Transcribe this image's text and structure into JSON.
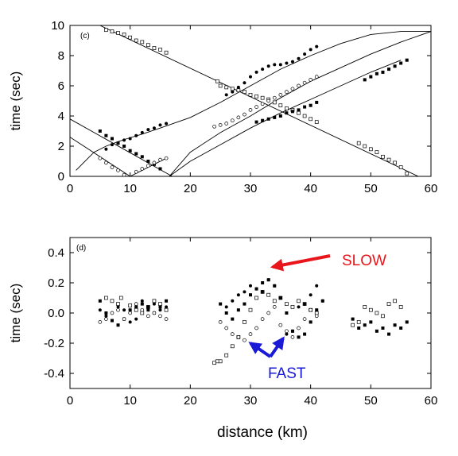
{
  "chart_data": [
    {
      "panel_label": "(c)",
      "type": "scatter",
      "xlim": [
        0,
        60
      ],
      "ylim": [
        0,
        10
      ],
      "xticks": [
        "0",
        "10",
        "20",
        "30",
        "40",
        "50",
        "60"
      ],
      "yticks": [
        "0",
        "2",
        "4",
        "6",
        "8",
        "10"
      ],
      "ylabel": "time (sec)",
      "xlabel": "",
      "grid": false,
      "lines": [
        {
          "x": [
            5,
            60
          ],
          "y": [
            10.0,
            -0.4
          ]
        },
        {
          "x": [
            0,
            17
          ],
          "y": [
            3.8,
            0
          ]
        },
        {
          "x": [
            0,
            10
          ],
          "y": [
            2.6,
            0
          ]
        },
        {
          "x": [
            10,
            16
          ],
          "y": [
            0,
            1.2
          ]
        },
        {
          "x": [
            1,
            2,
            4,
            6,
            8,
            9.5,
            12,
            15,
            20,
            25,
            30,
            35,
            40,
            45,
            50,
            55,
            60
          ],
          "y": [
            0.4,
            0.8,
            1.6,
            2.0,
            2.3,
            2.5,
            2.8,
            3.2,
            3.9,
            4.9,
            6.0,
            7.1,
            8.0,
            8.8,
            9.4,
            9.6,
            9.6
          ]
        },
        {
          "x": [
            16.5,
            20,
            25,
            30,
            35,
            40,
            45,
            50,
            55,
            60
          ],
          "y": [
            0,
            1.6,
            2.9,
            4.0,
            5.2,
            6.3,
            7.2,
            8.1,
            8.9,
            9.6
          ]
        },
        {
          "x": [
            16.5,
            20,
            25,
            30,
            35,
            40,
            45,
            50,
            55
          ],
          "y": [
            0,
            1.0,
            2.1,
            3.2,
            4.2,
            5.1,
            6.0,
            6.9,
            7.7
          ]
        }
      ],
      "series": [
        {
          "marker": "open-square",
          "x": [
            6,
            7,
            8,
            9,
            10,
            11,
            12,
            13,
            14,
            15,
            16,
            24.5,
            25,
            26,
            27,
            28,
            29,
            30,
            31,
            32,
            33,
            34,
            35,
            36,
            37,
            38,
            39,
            40,
            41,
            48,
            49,
            50,
            51,
            52,
            53,
            54,
            55,
            56
          ],
          "y": [
            9.7,
            9.6,
            9.5,
            9.4,
            9.2,
            9.0,
            8.9,
            8.7,
            8.5,
            8.4,
            8.2,
            6.3,
            6.0,
            5.9,
            5.8,
            5.7,
            5.6,
            5.4,
            5.3,
            5.2,
            5.1,
            4.9,
            4.7,
            4.5,
            4.4,
            4.2,
            4.0,
            3.8,
            3.6,
            2.2,
            2.0,
            1.8,
            1.6,
            1.3,
            1.1,
            0.9,
            0.6,
            0.2
          ]
        },
        {
          "marker": "filled-square",
          "x": [
            5,
            6,
            7,
            8,
            9,
            10,
            11,
            12,
            13,
            14,
            15,
            31,
            32,
            33,
            34,
            35,
            36,
            37,
            38,
            39,
            40,
            41,
            49,
            50,
            51,
            52,
            53,
            54,
            55,
            56
          ],
          "y": [
            3.0,
            2.7,
            2.5,
            2.2,
            2.0,
            1.7,
            1.5,
            1.3,
            1.0,
            0.8,
            0.5,
            3.6,
            3.7,
            3.8,
            3.9,
            4.0,
            4.2,
            4.3,
            4.4,
            4.6,
            4.7,
            4.9,
            6.4,
            6.6,
            6.8,
            6.9,
            7.1,
            7.3,
            7.5,
            7.7
          ]
        },
        {
          "marker": "filled-circle",
          "x": [
            6,
            7,
            8,
            9,
            10,
            11,
            12,
            13,
            14,
            15,
            16,
            26,
            27,
            28,
            29,
            30,
            31,
            32,
            33,
            34,
            35,
            36,
            37,
            38,
            39,
            40,
            41
          ],
          "y": [
            1.8,
            2.1,
            2.2,
            2.4,
            2.5,
            2.7,
            2.9,
            3.1,
            3.2,
            3.4,
            3.5,
            5.4,
            5.6,
            5.9,
            6.2,
            6.6,
            6.9,
            7.1,
            7.3,
            7.4,
            7.4,
            7.5,
            7.6,
            7.8,
            8.1,
            8.4,
            8.6
          ]
        },
        {
          "marker": "open-circle",
          "x": [
            5,
            6,
            7,
            8,
            9,
            11,
            12,
            13,
            14,
            15,
            16,
            24,
            25,
            26,
            27,
            28,
            29,
            30,
            31,
            32,
            33,
            34,
            35,
            36,
            37,
            38,
            39,
            40,
            41
          ],
          "y": [
            1.2,
            0.9,
            0.6,
            0.4,
            0.1,
            0.3,
            0.5,
            0.7,
            0.9,
            1.1,
            1.2,
            3.3,
            3.4,
            3.5,
            3.7,
            3.9,
            4.1,
            4.4,
            4.6,
            4.8,
            5.0,
            5.2,
            5.4,
            5.6,
            5.8,
            6.0,
            6.2,
            6.4,
            6.6
          ]
        }
      ]
    },
    {
      "panel_label": "(d)",
      "type": "scatter",
      "xlim": [
        0,
        60
      ],
      "ylim": [
        -0.5,
        0.5
      ],
      "xticks": [
        "0",
        "10",
        "20",
        "30",
        "40",
        "50",
        "60"
      ],
      "yticks": [
        "0.4",
        "0.2",
        "0.0",
        "-0.2",
        "-0.4"
      ],
      "ylabel": "time (sec)",
      "xlabel": "distance (km)",
      "grid": false,
      "annotations": [
        {
          "text": "SLOW",
          "color": "#e8161b"
        },
        {
          "text": "FAST",
          "color": "#1a1ad6"
        }
      ],
      "series": [
        {
          "marker": "open-square",
          "x": [
            6,
            7,
            8,
            8.5,
            10,
            11,
            12,
            13,
            14,
            15,
            16,
            24,
            24.5,
            25,
            26,
            27,
            28,
            29,
            30,
            31,
            32,
            33,
            34,
            35,
            36,
            37,
            38,
            39,
            40,
            41,
            47,
            48,
            49,
            50,
            51,
            52,
            53,
            54,
            55
          ],
          "y": [
            0.1,
            0.08,
            0.06,
            0.1,
            0.05,
            0.02,
            0.0,
            0.04,
            0.08,
            0.06,
            0.02,
            -0.33,
            -0.32,
            -0.32,
            -0.28,
            -0.22,
            -0.16,
            -0.06,
            0.02,
            0.1,
            0.14,
            0.12,
            0.08,
            0.1,
            0.06,
            0.04,
            0.08,
            0.06,
            0.02,
            0.0,
            -0.08,
            -0.06,
            0.04,
            0.02,
            0.0,
            -0.02,
            0.06,
            0.08,
            0.04
          ]
        },
        {
          "marker": "filled-square",
          "x": [
            5,
            6,
            7,
            8,
            9,
            10,
            11,
            12,
            13,
            14,
            15,
            16,
            25,
            26,
            27,
            28,
            29,
            30,
            31,
            32,
            33,
            34,
            35,
            36,
            37,
            38,
            39,
            40,
            41,
            42,
            47,
            48,
            49,
            50,
            51,
            52,
            53,
            54,
            55,
            56
          ],
          "y": [
            0.08,
            0.0,
            -0.05,
            -0.08,
            -0.04,
            0.02,
            0.04,
            0.06,
            0.02,
            0.0,
            0.04,
            0.08,
            0.06,
            0.0,
            -0.04,
            0.02,
            0.06,
            0.12,
            0.16,
            0.2,
            0.22,
            0.18,
            0.1,
            0.0,
            -0.12,
            -0.16,
            -0.14,
            -0.06,
            0.02,
            0.08,
            -0.04,
            -0.1,
            -0.08,
            -0.06,
            -0.12,
            -0.1,
            -0.14,
            -0.08,
            -0.1,
            -0.06
          ]
        },
        {
          "marker": "filled-circle",
          "x": [
            5,
            6,
            7,
            8,
            9,
            10,
            11,
            12,
            13,
            14,
            15,
            16,
            26,
            27,
            28,
            29,
            30,
            31,
            32,
            33,
            34,
            35,
            36,
            37,
            38,
            39,
            40,
            41,
            42
          ],
          "y": [
            0.02,
            -0.02,
            0.0,
            0.04,
            0.02,
            -0.06,
            -0.04,
            0.08,
            0.04,
            0.06,
            0.02,
            0.04,
            0.04,
            0.08,
            0.12,
            0.14,
            0.18,
            0.16,
            0.14,
            0.22,
            0.18,
            -0.08,
            -0.14,
            -0.12,
            0.04,
            0.06,
            0.12,
            0.18,
            0.08
          ]
        },
        {
          "marker": "open-circle",
          "x": [
            5,
            6,
            7,
            8,
            9,
            10,
            11,
            12,
            13,
            14,
            15,
            16,
            25,
            26,
            27,
            28,
            29,
            30,
            31,
            32,
            33,
            34,
            35,
            36,
            37,
            38,
            39,
            40,
            41
          ],
          "y": [
            -0.06,
            -0.04,
            0.0,
            0.02,
            -0.04,
            0.0,
            0.06,
            0.02,
            -0.02,
            0.0,
            -0.02,
            -0.04,
            -0.06,
            -0.1,
            -0.14,
            -0.16,
            -0.18,
            -0.14,
            -0.1,
            -0.04,
            0.0,
            0.04,
            -0.08,
            -0.12,
            -0.16,
            -0.1,
            -0.04,
            0.02,
            -0.02
          ]
        }
      ]
    }
  ]
}
